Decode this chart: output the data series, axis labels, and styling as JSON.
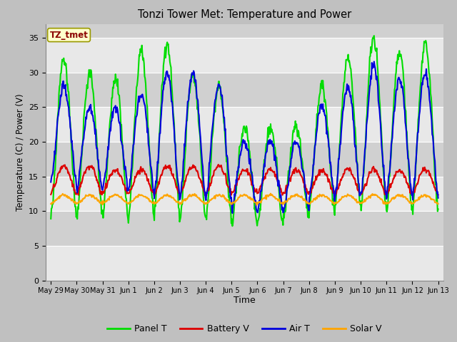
{
  "title": "Tonzi Tower Met: Temperature and Power",
  "xlabel": "Time",
  "ylabel": "Temperature (C) / Power (V)",
  "ylim": [
    0,
    37
  ],
  "yticks": [
    0,
    5,
    10,
    15,
    20,
    25,
    30,
    35
  ],
  "fig_bg_color": "#c8c8c8",
  "plot_bg_color": "#d8d8d8",
  "band_light_color": "#e8e8e8",
  "band_dark_color": "#c8c8c8",
  "legend_label": "TZ_tmet",
  "colors": {
    "panel_t": "#00dd00",
    "battery_v": "#dd0000",
    "air_t": "#0000dd",
    "solar_v": "#ffa500"
  },
  "x_tick_labels": [
    "May 29",
    "May 30",
    "May 31",
    "Jun 1",
    "Jun 2",
    "Jun 3",
    "Jun 4",
    "Jun 5",
    "Jun 6",
    "Jun 7",
    "Jun 8",
    "Jun 9",
    "Jun 10",
    "Jun 11",
    "Jun 12",
    "Jun 13"
  ],
  "panel_t_peaks": [
    32,
    30,
    29,
    33,
    34,
    30,
    28,
    22,
    22,
    22,
    28,
    32,
    35,
    33,
    34
  ],
  "panel_t_troughs": [
    9,
    9,
    9,
    9,
    9,
    9,
    9,
    8,
    8,
    9,
    10,
    11,
    10,
    10,
    10
  ],
  "air_t_peaks": [
    28,
    25,
    25,
    27,
    30,
    30,
    28,
    20,
    20,
    20,
    25,
    28,
    31,
    29,
    30
  ],
  "air_t_troughs": [
    14,
    13,
    13,
    13,
    12,
    12,
    12,
    10,
    10,
    10,
    12,
    12,
    12,
    12,
    12
  ],
  "batt_peaks": [
    16.5,
    16.5,
    16,
    16,
    16.5,
    16.5,
    16.5,
    16,
    16,
    16,
    16,
    16,
    16,
    16,
    16
  ],
  "batt_troughs": [
    12.5,
    12.5,
    12.5,
    12.5,
    12.5,
    12.5,
    12.5,
    12.5,
    12.5,
    12.5,
    12.5,
    12.5,
    12.5,
    12.5,
    12.5
  ],
  "solar_base": 11.1,
  "solar_amp": 1.2
}
